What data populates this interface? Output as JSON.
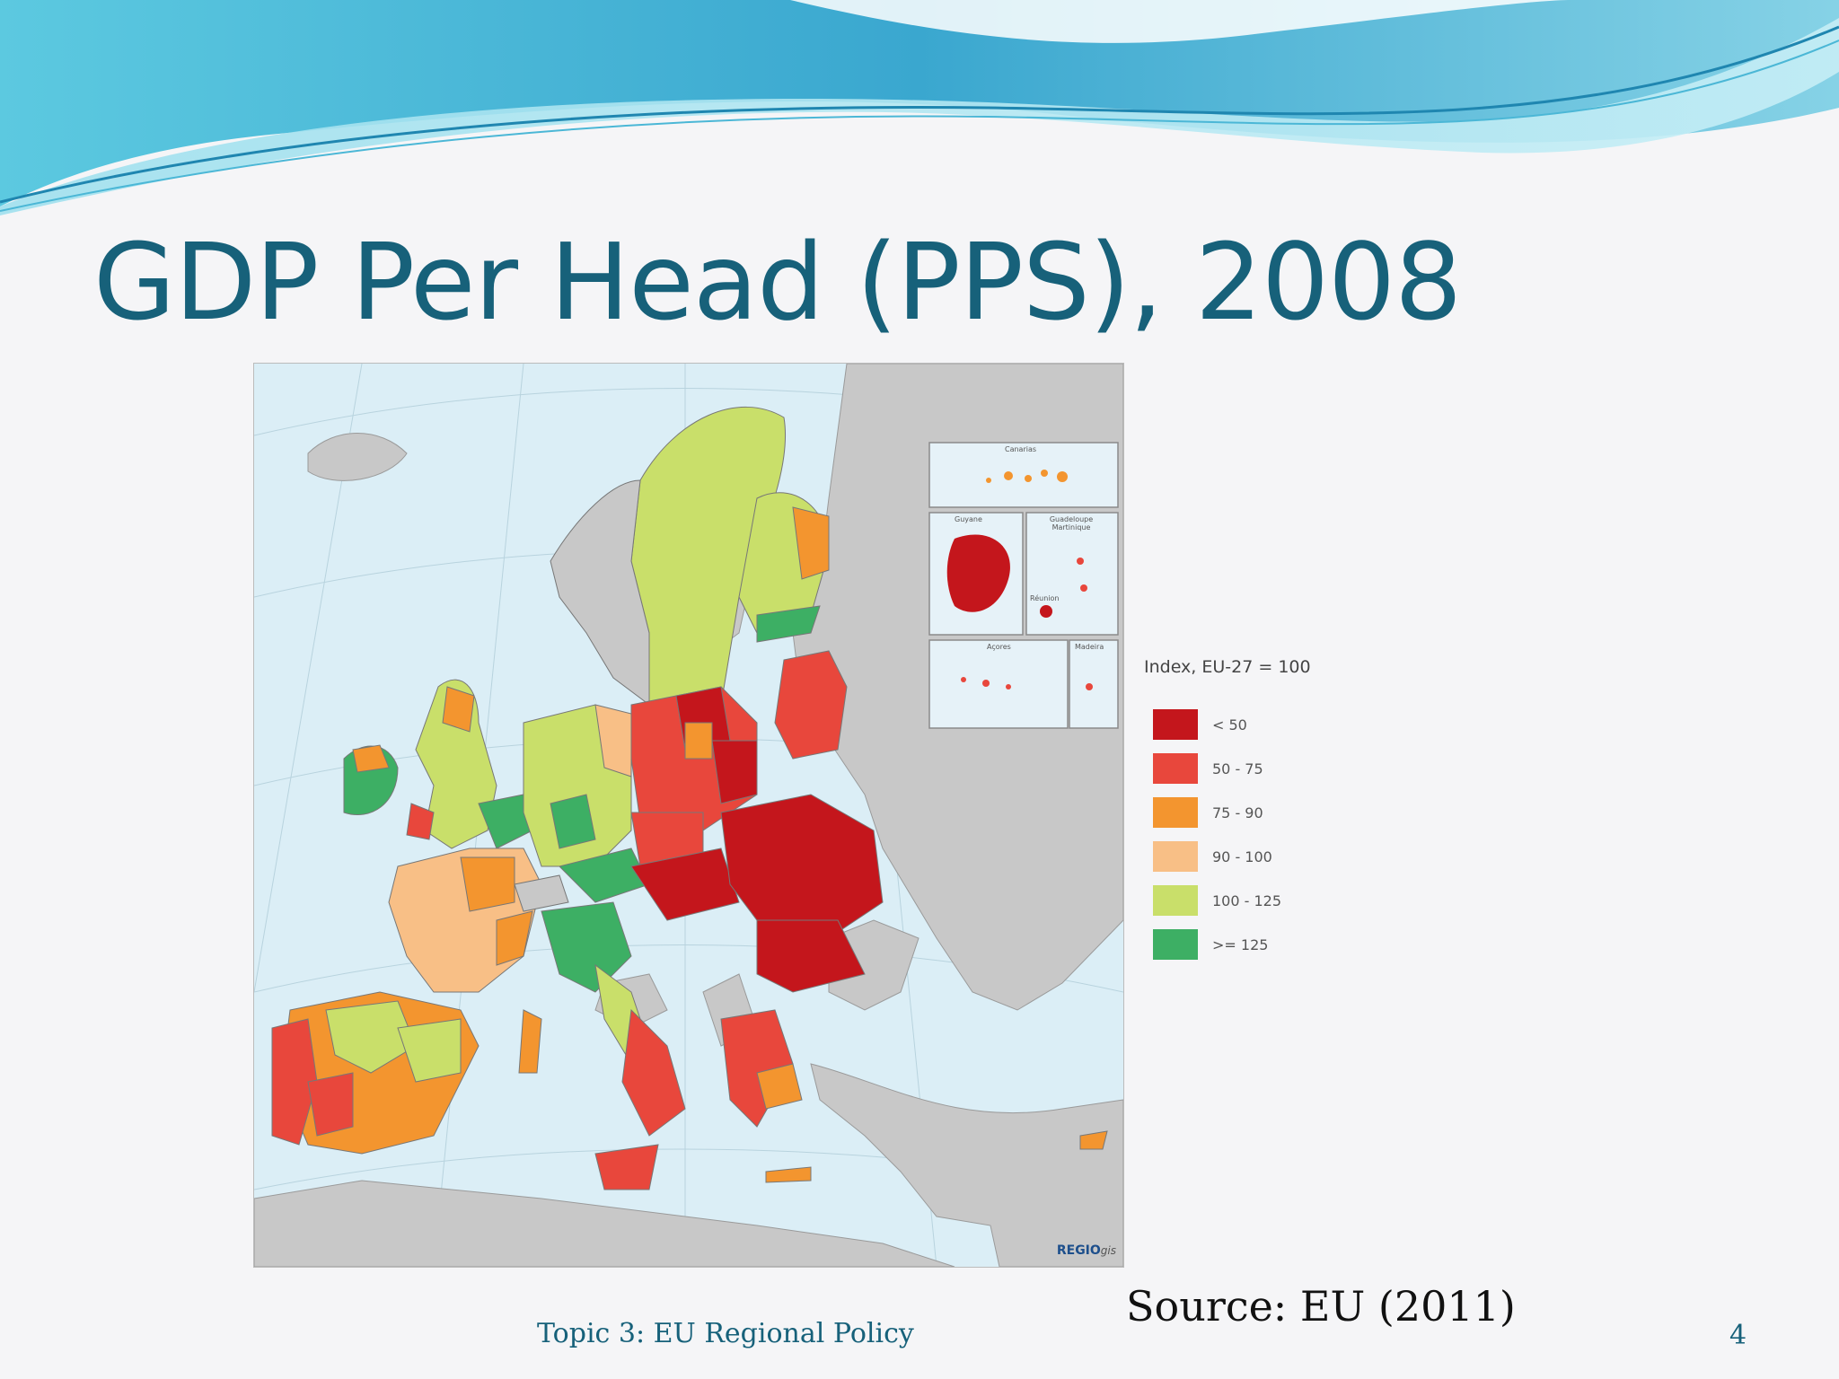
{
  "slide": {
    "title": "GDP Per Head (PPS), 2008",
    "source": "Source: EU (2011)",
    "footer": "Topic 3: EU Regional Policy",
    "page_number": "4"
  },
  "map": {
    "insets": [
      {
        "label": "Canarias"
      },
      {
        "label": "Guyane"
      },
      {
        "label": "Guadeloupe Martinique"
      },
      {
        "label": "Réunion"
      },
      {
        "label": "Açores"
      },
      {
        "label": "Madeira"
      }
    ],
    "logo_main": "REGIO",
    "logo_suffix": "gis"
  },
  "legend": {
    "title": "Index, EU-27 = 100",
    "items": [
      {
        "label": "< 50",
        "color": "#c4161c"
      },
      {
        "label": "50 - 75",
        "color": "#e8473c"
      },
      {
        "label": "75 - 90",
        "color": "#f3952f"
      },
      {
        "label": "90 - 100",
        "color": "#f8bf86"
      },
      {
        "label": "100 - 125",
        "color": "#c9df6a"
      },
      {
        "label": ">= 125",
        "color": "#3daf64"
      }
    ]
  },
  "colors": {
    "title": "#17617a",
    "sea": "#dbeef6",
    "non_eu_land": "#c8c8c8",
    "wave_dark": "#2ea3c9",
    "wave_light": "#8fd9ea"
  }
}
